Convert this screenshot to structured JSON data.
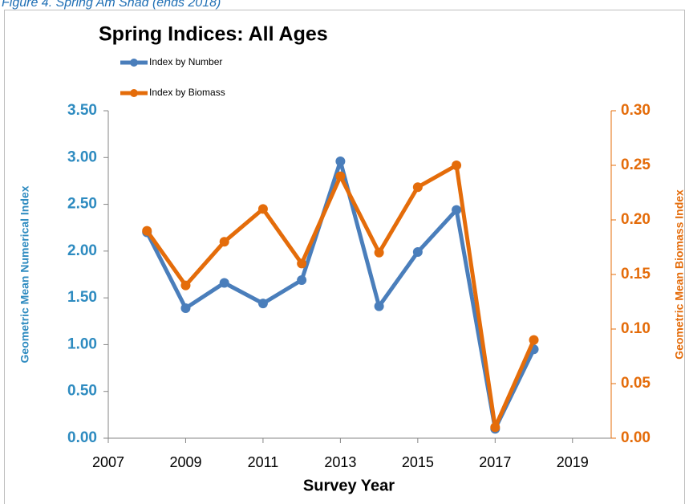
{
  "caption": "Figure 4. Spring Am Shad (ends 2018)",
  "chart_data": {
    "type": "line",
    "title": "Spring Indices:  All Ages",
    "x": [
      2008,
      2009,
      2010,
      2011,
      2012,
      2013,
      2014,
      2015,
      2016,
      2017,
      2018
    ],
    "series": [
      {
        "name": "Index by Number",
        "color": "#4a7ebb",
        "values": [
          2.2,
          1.39,
          1.66,
          1.44,
          1.69,
          2.96,
          1.41,
          1.99,
          2.44,
          0.1,
          0.95
        ]
      },
      {
        "name": "Index by Biomass",
        "color": "#e46c0a",
        "axis": "y2",
        "values": [
          0.19,
          0.14,
          0.18,
          0.21,
          0.16,
          0.24,
          0.17,
          0.23,
          0.25,
          0.01,
          0.09
        ]
      }
    ],
    "xlabel": "Survey Year",
    "ylabel": "Geometric Mean Numerical Index",
    "y2label": "Geometric Mean Biomass Index",
    "xlim": [
      2007,
      2020
    ],
    "xticks": [
      2007,
      2009,
      2011,
      2013,
      2015,
      2017,
      2019
    ],
    "ylim": [
      0,
      3.5
    ],
    "yticks": [
      {
        "value": 0,
        "label": "0.00"
      },
      {
        "value": 0.5,
        "label": "0.50"
      },
      {
        "value": 1,
        "label": "1.00"
      },
      {
        "value": 1.5,
        "label": "1.50"
      },
      {
        "value": 2,
        "label": "2.00"
      },
      {
        "value": 2.5,
        "label": "2.50"
      },
      {
        "value": 3,
        "label": "3.00"
      },
      {
        "value": 3.5,
        "label": "3.50"
      }
    ],
    "y2lim": [
      0,
      0.3
    ],
    "y2ticks": [
      {
        "value": 0,
        "label": "0.00"
      },
      {
        "value": 0.05,
        "label": "0.05"
      },
      {
        "value": 0.1,
        "label": "0.10"
      },
      {
        "value": 0.15,
        "label": "0.15"
      },
      {
        "value": 0.2,
        "label": "0.20"
      },
      {
        "value": 0.25,
        "label": "0.25"
      },
      {
        "value": 0.3,
        "label": "0.30"
      }
    ],
    "legend": "top-left"
  }
}
